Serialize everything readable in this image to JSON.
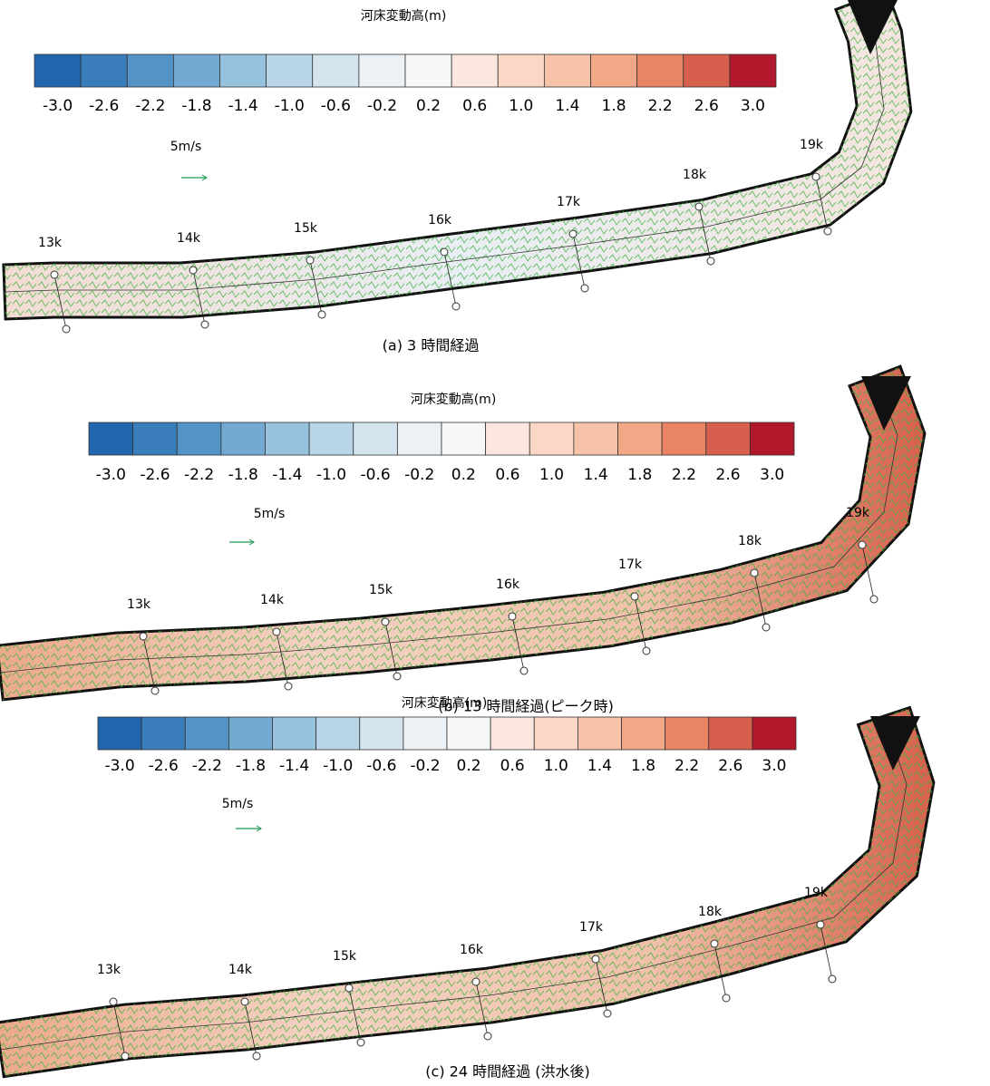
{
  "colorbar_colors": [
    "#2166ac",
    "#3a7dbb",
    "#5393c6",
    "#72aad2",
    "#96c2de",
    "#b9d6e8",
    "#d5e5f0",
    "#ecf1f5",
    "#f7f7f7",
    "#fbe7dd",
    "#fbd8c6",
    "#f7c3a8",
    "#f2a886",
    "#e98465",
    "#d6604d",
    "#b2182b"
  ],
  "panels": [
    {
      "colorbar_title": "河床変動高(m)",
      "colorbar_ticks": [
        "-3.0",
        "-2.6",
        "-2.2",
        "-1.8",
        "-1.4",
        "-1.0",
        "-0.6",
        "-0.2",
        "0.2",
        "0.6",
        "1.0",
        "1.4",
        "1.8",
        "2.2",
        "2.6",
        "3.0"
      ],
      "velocity_scale": "5m/s",
      "sections": [
        "13k",
        "14k",
        "15k",
        "16k",
        "17k",
        "18k",
        "19k"
      ],
      "caption": "(a) 3 時間経過"
    },
    {
      "colorbar_title": "河床変動高(m)",
      "colorbar_ticks": [
        "-3.0",
        "-2.6",
        "-2.2",
        "-1.8",
        "-1.4",
        "-1.0",
        "-0.6",
        "-0.2",
        "0.2",
        "0.6",
        "1.0",
        "1.4",
        "1.8",
        "2.2",
        "2.6",
        "3.0"
      ],
      "velocity_scale": "5m/s",
      "sections": [
        "13k",
        "14k",
        "15k",
        "16k",
        "17k",
        "18k",
        "19k"
      ],
      "caption": "(b) 13 時間経過(ピーク時)"
    },
    {
      "colorbar_title": "河床変動高(m)",
      "colorbar_ticks": [
        "-3.0",
        "-2.6",
        "-2.2",
        "-1.8",
        "-1.4",
        "-1.0",
        "-0.6",
        "-0.2",
        "0.2",
        "0.6",
        "1.0",
        "1.4",
        "1.8",
        "2.2",
        "2.6",
        "3.0"
      ],
      "velocity_scale": "5m/s",
      "sections": [
        "13k",
        "14k",
        "15k",
        "16k",
        "17k",
        "18k",
        "19k"
      ],
      "caption": "(c) 24 時間経過 (洪水後)"
    }
  ]
}
